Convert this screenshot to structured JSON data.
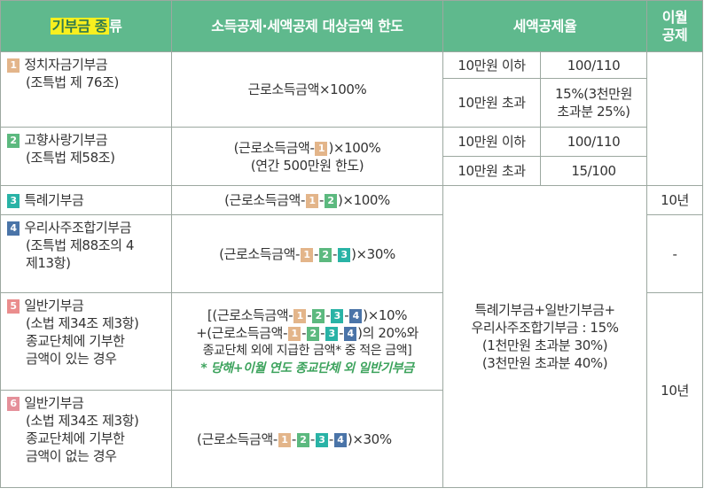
{
  "header": {
    "kind_highlight": "기부금 종",
    "kind_rest": "류",
    "limit": "소득공제·세액공제 대상금액 한도",
    "rate": "세액공제율",
    "carry_1": "이월",
    "carry_2": "공제"
  },
  "rows": [
    {
      "num": "1",
      "name": "정치자금기부금",
      "law": "(조특법 제 76조)",
      "limit": "근로소득금액×100%",
      "r1_label": "10만원 이하",
      "r1_value": "100/110",
      "r2_label": "10만원 초과",
      "r2_value_1": "15%(3천만원",
      "r2_value_2": "초과분 25%)"
    },
    {
      "num": "2",
      "name": "고향사랑기부금",
      "law": "(조특법 제58조)",
      "limit_pre": "(근로소득금액-",
      "limit_post": ")×100%",
      "limit_line2": "(연간 500만원 한도)",
      "r1_label": "10만원 이하",
      "r1_value": "100/110",
      "r2_label": "10만원 초과",
      "r2_value": "15/100"
    },
    {
      "num": "3",
      "name": "특례기부금",
      "limit_pre": "(근로소득금액-",
      "limit_post": ")×100%",
      "carry": "10년"
    },
    {
      "num": "4",
      "name": "우리사주조합기부금",
      "law_1": "(조특법 제88조의 4",
      "law_2": "제13항)",
      "limit_pre": "(근로소득금액-",
      "limit_post": ")×30%",
      "carry": "-"
    },
    {
      "num": "5",
      "name": "일반기부금",
      "law": "(소법 제34조 제3항)",
      "desc_1": "종교단체에 기부한",
      "desc_2": "금액이 있는 경우",
      "l1_pre": "[(근로소득금액-",
      "l1_post": ")×10%",
      "l2_pre": "+(근로소득금액-",
      "l2_post": ")의 20%와",
      "l3": "종교단체 외에 지급한 금액* 중 적은 금액]",
      "note": "* 당해+이월 연도 종교단체 외 일반기부금"
    },
    {
      "num": "6",
      "name": "일반기부금",
      "law": "(소법 제34조 제3항)",
      "desc_1": "종교단체에 기부한",
      "desc_2": "금액이 없는 경우",
      "limit_pre": "(근로소득금액-",
      "limit_post": ")×30%"
    }
  ],
  "merged_rate": {
    "line1": "특례기부금+일반기부금+",
    "line2": "우리사주조합기부금 : 15%",
    "line3": "(1천만원 초과분 30%)",
    "line4": "(3천만원 초과분 40%)"
  },
  "merged_carry": "10년",
  "badges": {
    "1": "1",
    "2": "2",
    "3": "3",
    "4": "4"
  },
  "colors": {
    "header_bg": "#5fb98d",
    "highlight": "#f7ef1f",
    "badge_1": "#e3b58a",
    "badge_2": "#5cb97f",
    "badge_3": "#29b3a6",
    "badge_4": "#4a74a8",
    "badge_5": "#ea8d8d",
    "badge_6": "#e5909a",
    "note": "#3da35d"
  }
}
